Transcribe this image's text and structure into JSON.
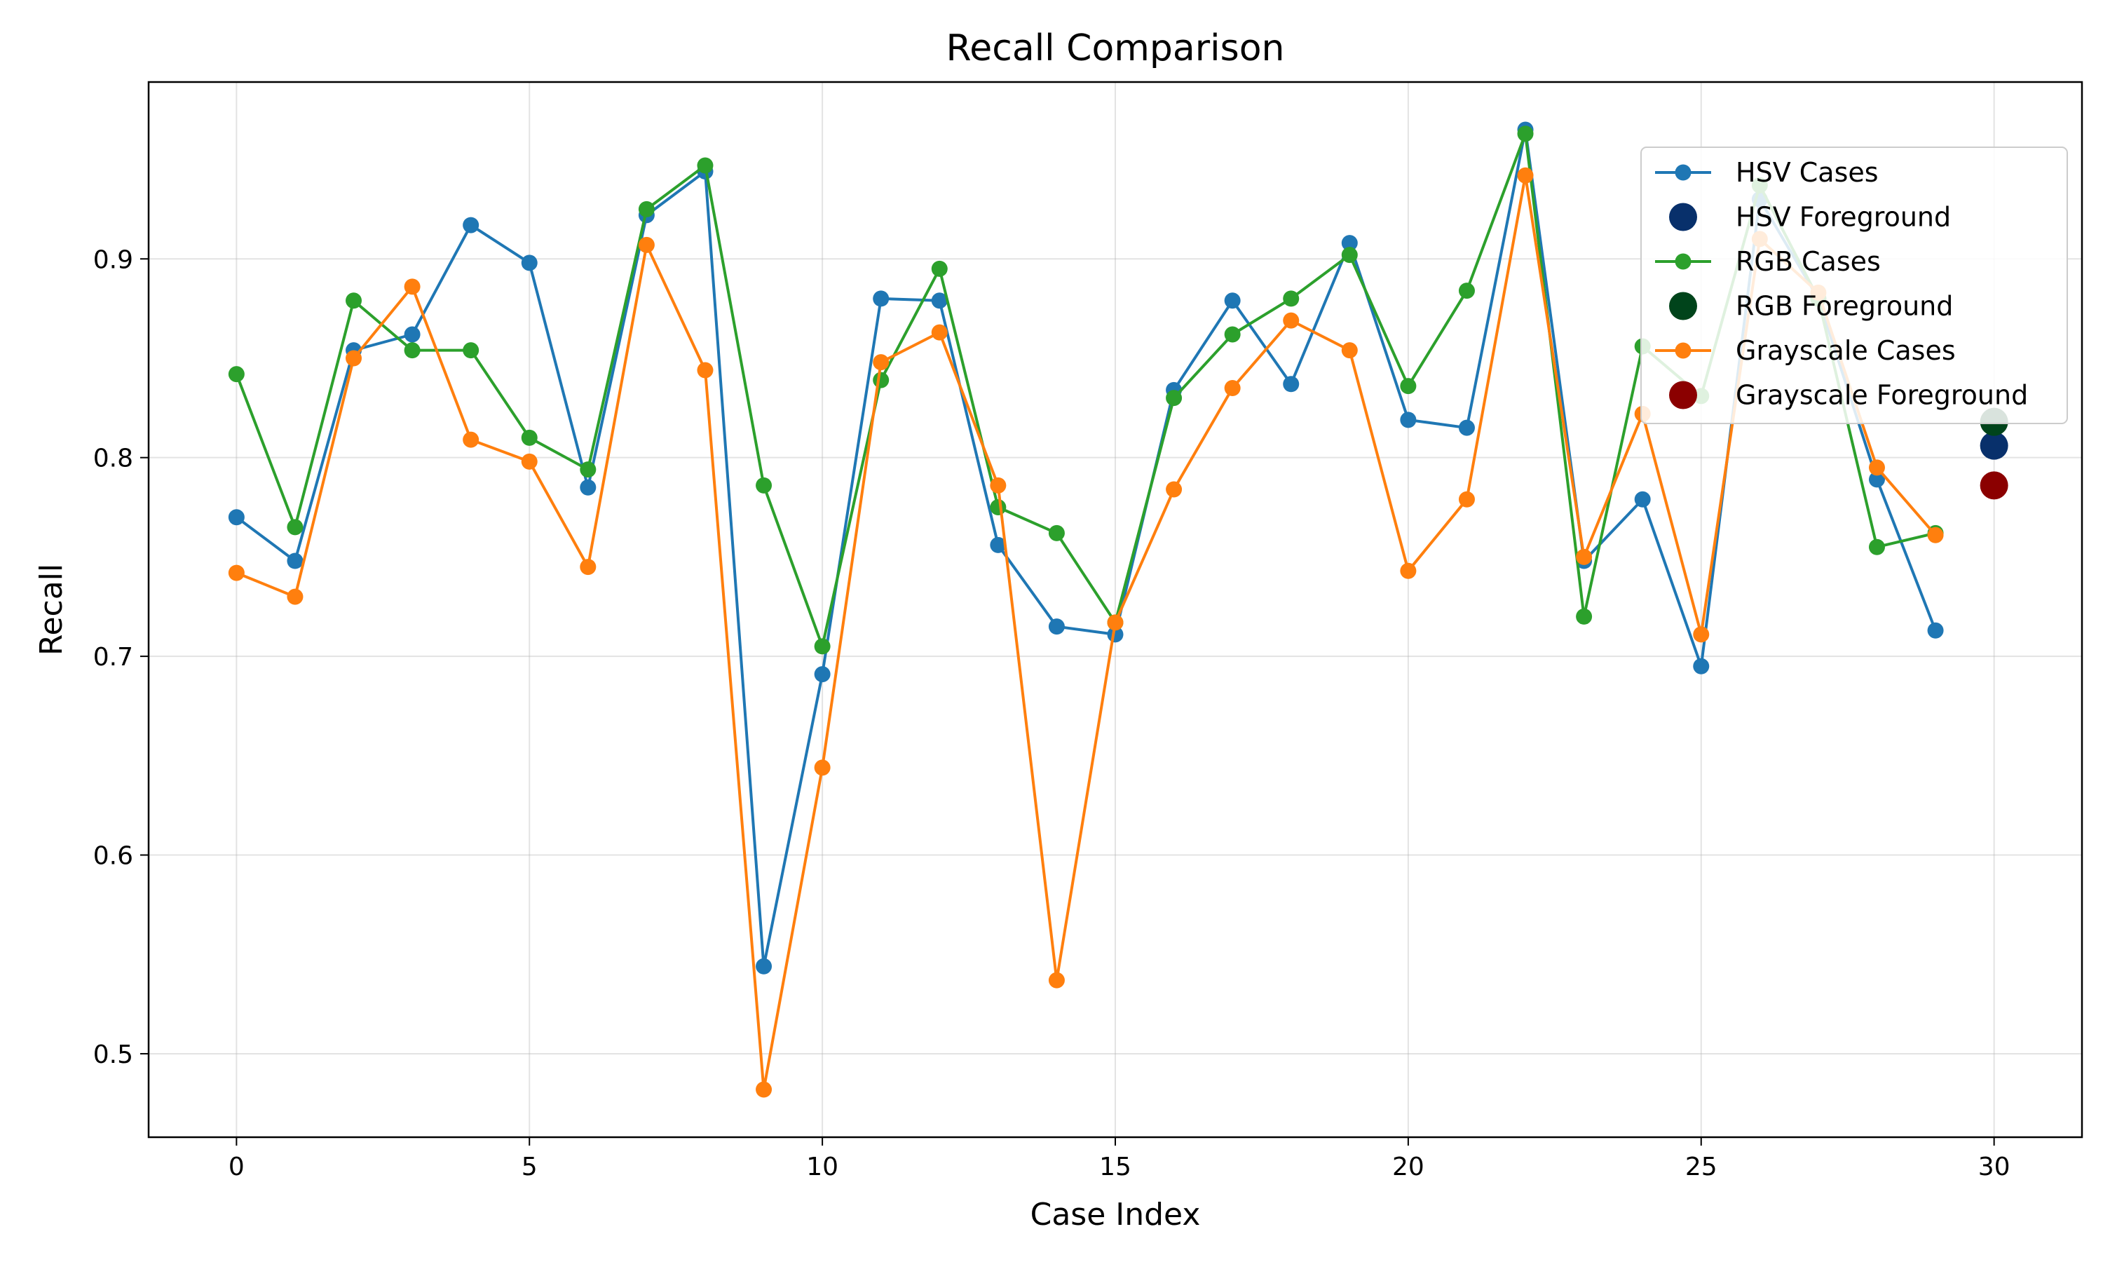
{
  "chart_data": {
    "type": "line",
    "title": "Recall Comparison",
    "xlabel": "Case Index",
    "ylabel": "Recall",
    "xlim": [
      -1.5,
      31.5
    ],
    "ylim": [
      0.458,
      0.989
    ],
    "x_ticks": [
      0,
      5,
      10,
      15,
      20,
      25,
      30
    ],
    "y_ticks": [
      0.5,
      0.6,
      0.7,
      0.8,
      0.9
    ],
    "grid": true,
    "legend_position": "top-right",
    "x": [
      0,
      1,
      2,
      3,
      4,
      5,
      6,
      7,
      8,
      9,
      10,
      11,
      12,
      13,
      14,
      15,
      16,
      17,
      18,
      19,
      20,
      21,
      22,
      23,
      24,
      25,
      26,
      27,
      28,
      29
    ],
    "series": [
      {
        "name": "HSV Cases",
        "kind": "line",
        "color": "#1f77b4",
        "values": [
          0.77,
          0.748,
          0.854,
          0.862,
          0.917,
          0.898,
          0.785,
          0.922,
          0.944,
          0.544,
          0.691,
          0.88,
          0.879,
          0.756,
          0.715,
          0.711,
          0.834,
          0.879,
          0.837,
          0.908,
          0.819,
          0.815,
          0.965,
          0.748,
          0.779,
          0.695,
          0.93,
          0.88,
          0.789,
          0.713
        ]
      },
      {
        "name": "RGB Cases",
        "kind": "line",
        "color": "#2ca02c",
        "values": [
          0.842,
          0.765,
          0.879,
          0.854,
          0.854,
          0.81,
          0.794,
          0.925,
          0.947,
          0.786,
          0.705,
          0.839,
          0.895,
          0.775,
          0.762,
          0.717,
          0.83,
          0.862,
          0.88,
          0.902,
          0.836,
          0.884,
          0.963,
          0.72,
          0.856,
          0.831,
          0.937,
          0.88,
          0.755,
          0.762
        ]
      },
      {
        "name": "Grayscale Cases",
        "kind": "line",
        "color": "#ff7f0e",
        "values": [
          0.742,
          0.73,
          0.85,
          0.886,
          0.809,
          0.798,
          0.745,
          0.907,
          0.844,
          0.482,
          0.644,
          0.848,
          0.863,
          0.786,
          0.537,
          0.717,
          0.784,
          0.835,
          0.869,
          0.854,
          0.743,
          0.779,
          0.942,
          0.75,
          0.822,
          0.711,
          0.91,
          0.883,
          0.795,
          0.761
        ]
      },
      {
        "name": "HSV Foreground",
        "kind": "point",
        "color": "#08306b",
        "x": 30,
        "value": 0.806
      },
      {
        "name": "RGB Foreground",
        "kind": "point",
        "color": "#00441b",
        "x": 30,
        "value": 0.818
      },
      {
        "name": "Grayscale Foreground",
        "kind": "point",
        "color": "#8b0000",
        "x": 30,
        "value": 0.786
      }
    ],
    "legend_order": [
      "HSV Cases",
      "HSV Foreground",
      "RGB Cases",
      "RGB Foreground",
      "Grayscale Cases",
      "Grayscale Foreground"
    ]
  }
}
